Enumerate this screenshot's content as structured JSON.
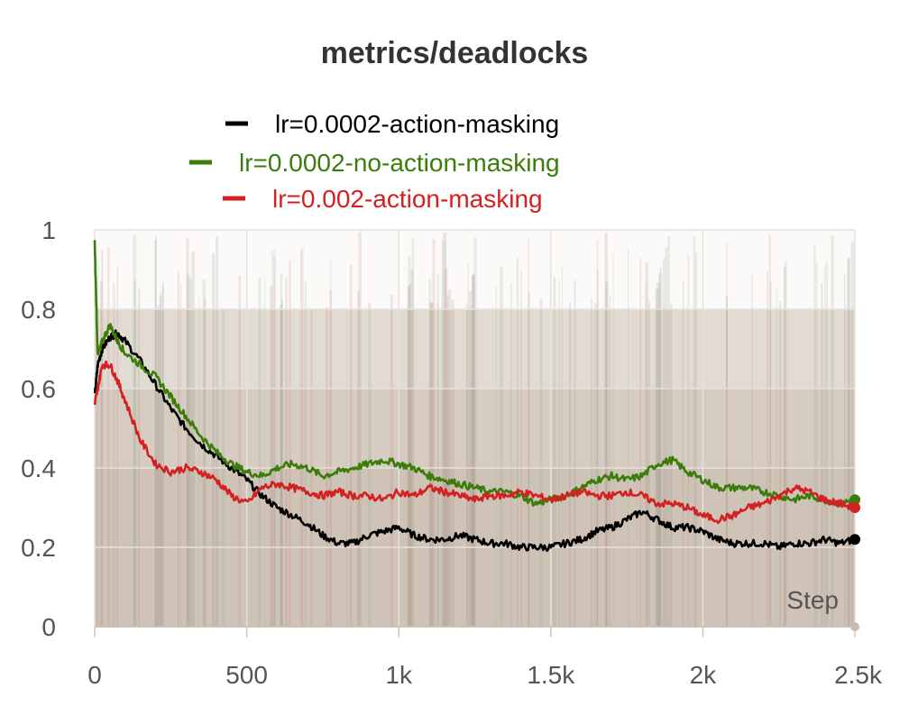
{
  "chart_data": {
    "type": "line",
    "title": "metrics/deadlocks",
    "xlabel": "Step",
    "ylabel": "",
    "xlim": [
      0,
      2500
    ],
    "ylim": [
      0,
      1
    ],
    "x_ticks": [
      0,
      500,
      1000,
      1500,
      2000,
      2500
    ],
    "x_tick_labels": [
      "0",
      "500",
      "1k",
      "1.5k",
      "2k",
      "2.5k"
    ],
    "y_ticks": [
      0,
      0.2,
      0.4,
      0.6,
      0.8,
      1
    ],
    "y_tick_labels": [
      "0",
      "0.2",
      "0.4",
      "0.6",
      "0.8",
      "1"
    ],
    "grid": true,
    "legend_position": "top-center",
    "series": [
      {
        "name": "lr=0.0002-action-masking",
        "color": "#000000",
        "x": [
          0,
          10,
          25,
          50,
          75,
          100,
          150,
          200,
          250,
          300,
          350,
          400,
          450,
          500,
          550,
          600,
          650,
          700,
          750,
          800,
          850,
          900,
          950,
          1000,
          1050,
          1100,
          1150,
          1200,
          1250,
          1300,
          1350,
          1400,
          1450,
          1500,
          1550,
          1600,
          1650,
          1700,
          1750,
          1800,
          1850,
          1900,
          1950,
          2000,
          2050,
          2100,
          2150,
          2200,
          2250,
          2300,
          2350,
          2400,
          2450,
          2500
        ],
        "values": [
          0.58,
          0.66,
          0.7,
          0.73,
          0.74,
          0.72,
          0.67,
          0.61,
          0.55,
          0.5,
          0.46,
          0.43,
          0.4,
          0.37,
          0.33,
          0.3,
          0.28,
          0.26,
          0.23,
          0.21,
          0.21,
          0.23,
          0.24,
          0.25,
          0.23,
          0.22,
          0.22,
          0.23,
          0.22,
          0.21,
          0.21,
          0.2,
          0.2,
          0.2,
          0.21,
          0.22,
          0.24,
          0.25,
          0.27,
          0.29,
          0.27,
          0.25,
          0.25,
          0.24,
          0.22,
          0.21,
          0.21,
          0.21,
          0.2,
          0.21,
          0.21,
          0.22,
          0.21,
          0.22
        ]
      },
      {
        "name": "lr=0.0002-no-action-masking",
        "color": "#3a7d0a",
        "x": [
          0,
          10,
          25,
          50,
          75,
          100,
          150,
          200,
          250,
          300,
          350,
          400,
          450,
          500,
          550,
          600,
          650,
          700,
          750,
          800,
          850,
          900,
          950,
          1000,
          1050,
          1100,
          1150,
          1200,
          1250,
          1300,
          1350,
          1400,
          1450,
          1500,
          1550,
          1600,
          1650,
          1700,
          1750,
          1800,
          1850,
          1900,
          1950,
          2000,
          2050,
          2100,
          2150,
          2200,
          2250,
          2300,
          2350,
          2400,
          2450,
          2500
        ],
        "values": [
          0.97,
          0.68,
          0.72,
          0.76,
          0.72,
          0.69,
          0.66,
          0.63,
          0.58,
          0.53,
          0.48,
          0.44,
          0.41,
          0.39,
          0.38,
          0.4,
          0.41,
          0.4,
          0.38,
          0.39,
          0.4,
          0.41,
          0.42,
          0.41,
          0.4,
          0.38,
          0.37,
          0.36,
          0.35,
          0.34,
          0.34,
          0.33,
          0.31,
          0.32,
          0.33,
          0.35,
          0.37,
          0.38,
          0.37,
          0.38,
          0.41,
          0.42,
          0.39,
          0.37,
          0.35,
          0.35,
          0.35,
          0.34,
          0.33,
          0.32,
          0.33,
          0.32,
          0.31,
          0.32
        ]
      },
      {
        "name": "lr=0.002-action-masking",
        "color": "#d42020",
        "x": [
          0,
          10,
          25,
          50,
          75,
          100,
          150,
          200,
          250,
          300,
          350,
          400,
          450,
          500,
          550,
          600,
          650,
          700,
          750,
          800,
          850,
          900,
          950,
          1000,
          1050,
          1100,
          1150,
          1200,
          1250,
          1300,
          1350,
          1400,
          1450,
          1500,
          1550,
          1600,
          1650,
          1700,
          1750,
          1800,
          1850,
          1900,
          1950,
          2000,
          2050,
          2100,
          2150,
          2200,
          2250,
          2300,
          2350,
          2400,
          2450,
          2500
        ],
        "values": [
          0.56,
          0.6,
          0.66,
          0.66,
          0.62,
          0.57,
          0.47,
          0.41,
          0.39,
          0.4,
          0.39,
          0.37,
          0.33,
          0.31,
          0.35,
          0.36,
          0.35,
          0.34,
          0.33,
          0.34,
          0.33,
          0.33,
          0.32,
          0.34,
          0.33,
          0.35,
          0.34,
          0.33,
          0.32,
          0.33,
          0.33,
          0.34,
          0.33,
          0.32,
          0.33,
          0.34,
          0.33,
          0.33,
          0.34,
          0.33,
          0.31,
          0.31,
          0.3,
          0.28,
          0.27,
          0.28,
          0.3,
          0.31,
          0.33,
          0.35,
          0.34,
          0.32,
          0.31,
          0.3
        ]
      }
    ]
  }
}
